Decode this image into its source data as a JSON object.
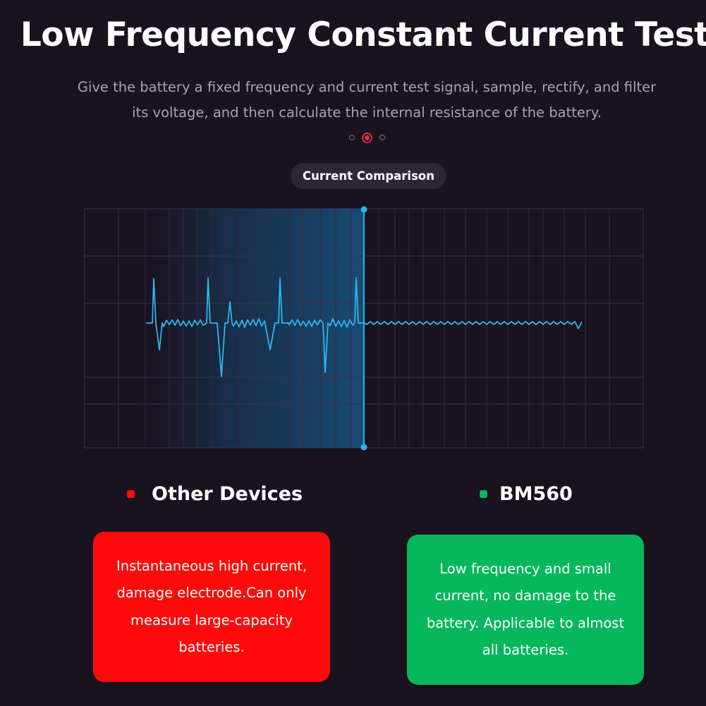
{
  "header": {
    "title": "Low Frequency Constant Current Test",
    "subtitle": "Give the battery a fixed frequency and current test signal, sample, rectify, and filter its voltage, and then calculate the internal resistance of the battery."
  },
  "carousel": {
    "total": 3,
    "active_index": 1
  },
  "comparison_label": "Current Comparison",
  "colors": {
    "background": "#19121f",
    "waveform": "#2bb6ec",
    "other_devices": "#ff0a0a",
    "bm560": "#06b85b",
    "carousel_active": "#e0304a"
  },
  "legend": {
    "left": {
      "label": "Other Devices",
      "color": "#ff0a0a"
    },
    "right": {
      "label": "BM560",
      "color": "#06b85b"
    }
  },
  "cards": {
    "left": {
      "text": "Instantaneous high current, damage electrode.Can only measure large-capacity batteries."
    },
    "right": {
      "text": "Low frequency and small current, no damage to the battery. Applicable to almost all batteries."
    }
  }
}
